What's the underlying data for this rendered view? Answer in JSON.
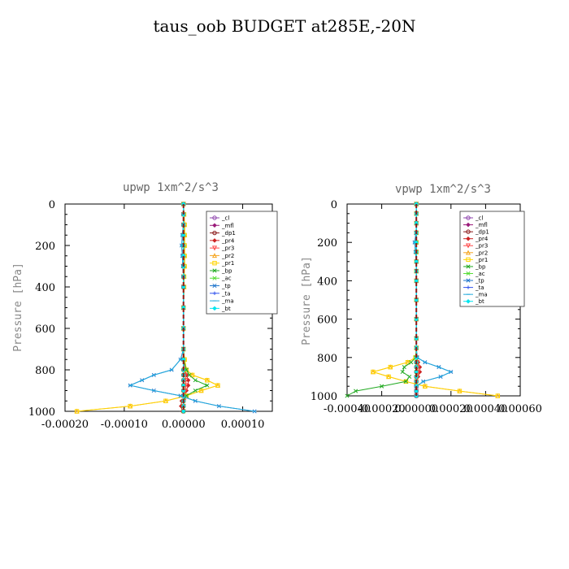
{
  "title": "taus_oob  BUDGET at285E,-20N",
  "colors": {
    "_cl": "#8e44ad",
    "_mfl": "#9b1b7a",
    "_dp1": "#8b1a1a",
    "_pr4": "#cc2222",
    "_pr3": "#ff4a4a",
    "_pr2": "#f5a623",
    "_pr1": "#ffd400",
    "_bp": "#22aa22",
    "_ac": "#55dd33",
    "_tp": "#2277cc",
    "_ta": "#3355ee",
    "_ma": "#22aadd",
    "_bt": "#00e5ee"
  },
  "chart_data": [
    {
      "type": "line",
      "orientation": "vertical-profile",
      "title": "upwp  1xm^2/s^3",
      "ylabel": "Pressure [hPa]",
      "xlim": [
        -0.0002,
        0.00015
      ],
      "ylim": [
        1000,
        0
      ],
      "x_tick_labels": [
        "-0.00020",
        "-0.00010",
        "0.00000",
        "0.00010"
      ],
      "y_tick_labels": [
        "0",
        "200",
        "400",
        "600",
        "800",
        "1000"
      ],
      "legend_position": "top-right",
      "levels": [
        0,
        50,
        100,
        150,
        200,
        250,
        300,
        350,
        400,
        500,
        600,
        700,
        750,
        800,
        825,
        850,
        875,
        900,
        925,
        950,
        975,
        1000
      ],
      "series": [
        {
          "name": "_cl",
          "values": [
            0,
            0,
            0,
            0,
            0,
            0,
            0,
            0,
            0,
            0,
            0,
            0,
            0,
            0,
            0,
            0,
            0,
            0,
            0,
            0,
            0,
            0
          ]
        },
        {
          "name": "_mfl",
          "values": [
            0,
            0,
            0,
            0,
            0,
            0,
            0,
            0,
            0,
            0,
            0,
            0,
            0,
            0,
            0,
            0,
            0,
            0,
            0,
            0,
            0,
            0
          ]
        },
        {
          "name": "_dp1",
          "values": [
            0,
            0,
            0,
            0,
            0,
            0,
            0,
            0,
            0,
            0,
            0,
            0,
            0,
            0,
            0,
            0,
            0,
            0,
            0,
            0,
            0,
            0
          ]
        },
        {
          "name": "_pr4",
          "values": [
            0,
            0,
            0,
            0,
            0,
            0,
            0,
            0,
            0,
            0,
            0,
            0,
            0,
            2e-06,
            5e-06,
            8e-06,
            8e-06,
            5e-06,
            2e-06,
            -3e-06,
            -4e-06,
            -2e-06
          ]
        },
        {
          "name": "_pr3",
          "values": [
            0,
            0,
            0,
            0,
            0,
            0,
            0,
            0,
            0,
            0,
            0,
            0,
            0,
            2e-06,
            3e-06,
            4e-06,
            4e-06,
            3e-06,
            2e-06,
            1e-06,
            0,
            0
          ]
        },
        {
          "name": "_pr2",
          "values": [
            0,
            1e-06,
            2e-06,
            2e-06,
            2e-06,
            2e-06,
            2e-06,
            1e-06,
            1e-06,
            0,
            0,
            0,
            2e-06,
            5e-06,
            1.5e-05,
            4e-05,
            5.8e-05,
            3e-05,
            5e-06,
            -3e-05,
            -9e-05,
            -0.00018
          ]
        },
        {
          "name": "_pr1",
          "values": [
            0,
            1e-06,
            2e-06,
            2e-06,
            2e-06,
            2e-06,
            2e-06,
            1e-06,
            1e-06,
            0,
            0,
            0,
            2e-06,
            5e-06,
            1.5e-05,
            4e-05,
            5.8e-05,
            3e-05,
            5e-06,
            -3e-05,
            -9e-05,
            -0.00018
          ]
        },
        {
          "name": "_bp",
          "values": [
            0,
            0,
            0,
            0,
            0,
            0,
            0,
            0,
            0,
            0,
            0,
            0,
            0,
            5e-06,
            1e-05,
            2e-05,
            4e-05,
            2e-05,
            5e-06,
            0,
            0,
            0
          ]
        },
        {
          "name": "_ac",
          "values": [
            0,
            0,
            0,
            0,
            0,
            0,
            0,
            0,
            0,
            0,
            0,
            0,
            0,
            0,
            0,
            0,
            0,
            0,
            0,
            0,
            0,
            0
          ]
        },
        {
          "name": "_tp",
          "values": [
            0,
            0,
            0,
            -2e-06,
            -3e-06,
            -2e-06,
            -1e-06,
            0,
            0,
            0,
            0,
            0,
            -5e-06,
            -2e-05,
            -5e-05,
            -7e-05,
            -9e-05,
            -5e-05,
            -5e-06,
            2e-05,
            6e-05,
            0.00012
          ]
        },
        {
          "name": "_ta",
          "values": [
            0,
            0,
            0,
            0,
            0,
            0,
            0,
            0,
            0,
            0,
            0,
            0,
            0,
            0,
            0,
            0,
            0,
            0,
            0,
            0,
            0,
            0
          ]
        },
        {
          "name": "_ma",
          "values": [
            0,
            0,
            0,
            -2e-06,
            -3e-06,
            -2e-06,
            -1e-06,
            0,
            0,
            0,
            0,
            0,
            -5e-06,
            -2e-05,
            -5e-05,
            -7e-05,
            -9e-05,
            -5e-05,
            -5e-06,
            2e-05,
            6e-05,
            0.00012
          ]
        },
        {
          "name": "_bt",
          "values": [
            0,
            0,
            0,
            0,
            0,
            0,
            0,
            0,
            0,
            0,
            0,
            0,
            0,
            0,
            0,
            0,
            0,
            0,
            0,
            0,
            0,
            0
          ]
        }
      ]
    },
    {
      "type": "line",
      "orientation": "vertical-profile",
      "title": "vpwp  1xm^2/s^3",
      "ylabel": "Pressure [hPa]",
      "xlim": [
        -0.0004,
        0.0006
      ],
      "ylim": [
        1000,
        0
      ],
      "x_tick_labels": [
        "-0.00040",
        "-0.00020",
        "0.00000",
        "0.00020",
        "0.00040",
        "0.00060"
      ],
      "y_tick_labels": [
        "0",
        "200",
        "400",
        "600",
        "800",
        "1000"
      ],
      "legend_position": "top-right",
      "levels": [
        0,
        50,
        100,
        150,
        200,
        250,
        300,
        350,
        400,
        500,
        600,
        700,
        750,
        800,
        825,
        850,
        875,
        900,
        925,
        950,
        975,
        1000
      ],
      "series": [
        {
          "name": "_cl",
          "values": [
            0,
            0,
            0,
            0,
            0,
            0,
            0,
            0,
            0,
            0,
            0,
            0,
            0,
            0,
            0,
            0,
            0,
            0,
            0,
            0,
            0,
            0
          ]
        },
        {
          "name": "_mfl",
          "values": [
            0,
            0,
            0,
            0,
            0,
            0,
            0,
            0,
            0,
            0,
            0,
            0,
            0,
            0,
            0,
            0,
            0,
            0,
            0,
            0,
            0,
            0
          ]
        },
        {
          "name": "_dp1",
          "values": [
            0,
            0,
            0,
            0,
            0,
            0,
            0,
            0,
            0,
            0,
            0,
            0,
            0,
            0,
            0,
            0,
            0,
            0,
            0,
            0,
            0,
            0
          ]
        },
        {
          "name": "_pr4",
          "values": [
            0,
            0,
            0,
            0,
            0,
            0,
            0,
            0,
            0,
            0,
            0,
            0,
            0,
            0,
            1e-05,
            2e-05,
            2e-05,
            1e-05,
            0,
            0,
            0,
            0
          ]
        },
        {
          "name": "_pr3",
          "values": [
            0,
            0,
            0,
            0,
            0,
            0,
            0,
            0,
            0,
            0,
            0,
            0,
            0,
            0,
            5e-06,
            1e-05,
            1e-05,
            5e-06,
            0,
            0,
            0,
            0
          ]
        },
        {
          "name": "_pr2",
          "values": [
            0,
            0,
            0,
            0,
            0,
            0,
            0,
            0,
            0,
            0,
            0,
            0,
            0,
            -5e-06,
            -5e-05,
            -0.00015,
            -0.00025,
            -0.00016,
            -6e-05,
            5e-05,
            0.00025,
            0.00047
          ]
        },
        {
          "name": "_pr1",
          "values": [
            0,
            0,
            0,
            0,
            0,
            0,
            0,
            0,
            0,
            0,
            0,
            0,
            0,
            -5e-06,
            -5e-05,
            -0.00015,
            -0.00025,
            -0.00016,
            -6e-05,
            5e-05,
            0.00025,
            0.00047
          ]
        },
        {
          "name": "_bp",
          "values": [
            0,
            0,
            0,
            0,
            0,
            0,
            0,
            0,
            0,
            0,
            0,
            0,
            0,
            -3e-06,
            -3e-05,
            -7e-05,
            -8e-05,
            -4e-05,
            -6e-05,
            -0.0002,
            -0.00035,
            -0.0004
          ]
        },
        {
          "name": "_ac",
          "values": [
            0,
            0,
            0,
            0,
            0,
            0,
            0,
            0,
            0,
            0,
            0,
            0,
            0,
            0,
            0,
            0,
            0,
            0,
            0,
            0,
            0,
            0
          ]
        },
        {
          "name": "_tp",
          "values": [
            0,
            0,
            0,
            -2e-06,
            -1e-05,
            -5e-06,
            0,
            0,
            0,
            0,
            0,
            0,
            0,
            5e-06,
            5e-05,
            0.00013,
            0.0002,
            0.00014,
            4e-05,
            0,
            0,
            0
          ]
        },
        {
          "name": "_ta",
          "values": [
            0,
            0,
            0,
            0,
            0,
            0,
            0,
            0,
            0,
            0,
            0,
            0,
            0,
            0,
            0,
            0,
            0,
            0,
            0,
            0,
            0,
            0
          ]
        },
        {
          "name": "_ma",
          "values": [
            0,
            0,
            0,
            -2e-06,
            -1e-05,
            -5e-06,
            0,
            0,
            0,
            0,
            0,
            0,
            0,
            5e-06,
            5e-05,
            0.00013,
            0.0002,
            0.00014,
            4e-05,
            0,
            0,
            0
          ]
        },
        {
          "name": "_bt",
          "values": [
            0,
            0,
            0,
            0,
            0,
            0,
            0,
            0,
            0,
            0,
            0,
            0,
            0,
            0,
            0,
            0,
            0,
            0,
            0,
            0,
            0,
            0
          ]
        }
      ]
    }
  ]
}
